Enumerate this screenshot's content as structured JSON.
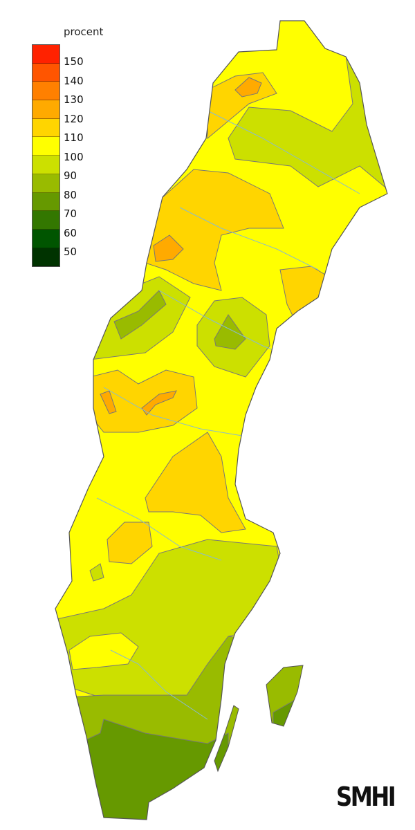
{
  "legend": {
    "title": "procent",
    "bins": [
      {
        "color": "#ff2200"
      },
      {
        "color": "#ff5500"
      },
      {
        "color": "#ff8000"
      },
      {
        "color": "#ffaa00"
      },
      {
        "color": "#ffd500"
      },
      {
        "color": "#ffff00"
      },
      {
        "color": "#cce000"
      },
      {
        "color": "#99bb00"
      },
      {
        "color": "#669900"
      },
      {
        "color": "#337700"
      },
      {
        "color": "#005500"
      },
      {
        "color": "#003300"
      }
    ],
    "labels": [
      "150",
      "140",
      "130",
      "120",
      "110",
      "100",
      "90",
      "80",
      "70",
      "60",
      "50"
    ]
  },
  "map": {
    "region": "Sweden",
    "unit": "procent",
    "water_color": "#88bbcc",
    "border_color": "#666666"
  },
  "logo": {
    "text": "SMHI"
  }
}
